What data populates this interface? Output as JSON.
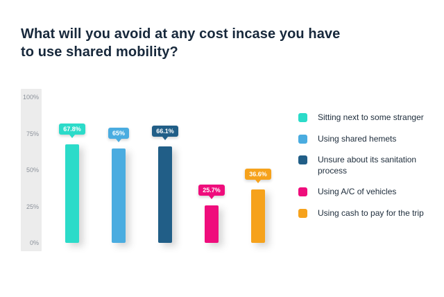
{
  "title": {
    "line1": "What will you avoid at any cost incase you have",
    "line2": "to use shared mobility?"
  },
  "chart_data": {
    "type": "bar",
    "title": "What will you avoid at any cost incase you have to use shared mobility?",
    "categories": [
      "Sitting next to some stranger",
      "Using shared hemets",
      "Unsure about its sanitation process",
      "Using A/C of vehicles",
      "Using cash to pay for the trip"
    ],
    "values": [
      67.8,
      65,
      66.1,
      25.7,
      36.6
    ],
    "value_labels": [
      "67.8%",
      "65%",
      "66.1%",
      "25.7%",
      "36.6%"
    ],
    "colors": [
      "#2BDBC9",
      "#4AACE0",
      "#215E87",
      "#EF0D7C",
      "#F6A21C"
    ],
    "xlabel": "",
    "ylabel": "",
    "ylim": [
      0,
      100
    ],
    "yticks": [
      {
        "label": "100%",
        "value": 100
      },
      {
        "label": "75%",
        "value": 75
      },
      {
        "label": "50%",
        "value": 50
      },
      {
        "label": "25%",
        "value": 25
      },
      {
        "label": "0%",
        "value": 0
      }
    ],
    "grid": false,
    "legend_position": "right"
  },
  "legend": {
    "items": [
      {
        "label": "Sitting next to some stranger",
        "color": "#2BDBC9"
      },
      {
        "label": "Using shared hemets",
        "color": "#4AACE0"
      },
      {
        "label": "Unsure about its sanitation process",
        "color": "#215E87"
      },
      {
        "label": "Using A/C of vehicles",
        "color": "#EF0D7C"
      },
      {
        "label": "Using cash to pay for the trip",
        "color": "#F6A21C"
      }
    ]
  }
}
